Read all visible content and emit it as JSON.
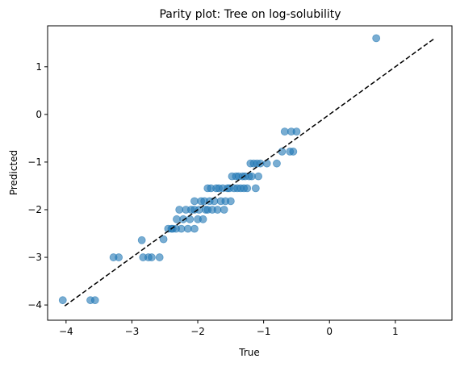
{
  "chart_data": {
    "type": "scatter",
    "title": "Parity plot: Tree on log-solubility",
    "xlabel": "True",
    "ylabel": "Predicted",
    "xlim": [
      -4.28,
      1.86
    ],
    "ylim": [
      -4.32,
      1.86
    ],
    "xticks": [
      -4,
      -3,
      -2,
      -1,
      0,
      1
    ],
    "yticks": [
      -4,
      -3,
      -2,
      -1,
      0,
      1
    ],
    "xtick_labels": [
      "−4",
      "−3",
      "−2",
      "−1",
      "0",
      "1"
    ],
    "ytick_labels": [
      "−4",
      "−3",
      "−2",
      "−1",
      "0",
      "1"
    ],
    "grid": false,
    "point_color": "#1f77b4",
    "point_alpha": 0.6,
    "reference_line": {
      "style": "dashed",
      "color": "#000000",
      "x": [
        -4.02,
        1.58
      ],
      "y": [
        -4.02,
        1.58
      ]
    },
    "points": [
      {
        "x": -4.05,
        "y": -3.9
      },
      {
        "x": -3.63,
        "y": -3.9
      },
      {
        "x": -3.56,
        "y": -3.9
      },
      {
        "x": -3.28,
        "y": -3.0
      },
      {
        "x": -3.2,
        "y": -3.0
      },
      {
        "x": -2.85,
        "y": -2.64
      },
      {
        "x": -2.83,
        "y": -3.0
      },
      {
        "x": -2.75,
        "y": -3.0
      },
      {
        "x": -2.7,
        "y": -3.0
      },
      {
        "x": -2.58,
        "y": -3.0
      },
      {
        "x": -2.52,
        "y": -2.62
      },
      {
        "x": -2.45,
        "y": -2.4
      },
      {
        "x": -2.4,
        "y": -2.4
      },
      {
        "x": -2.38,
        "y": -2.4
      },
      {
        "x": -2.33,
        "y": -2.4
      },
      {
        "x": -2.32,
        "y": -2.2
      },
      {
        "x": -2.28,
        "y": -2.0
      },
      {
        "x": -2.25,
        "y": -2.4
      },
      {
        "x": -2.22,
        "y": -2.2
      },
      {
        "x": -2.18,
        "y": -2.0
      },
      {
        "x": -2.15,
        "y": -2.4
      },
      {
        "x": -2.12,
        "y": -2.2
      },
      {
        "x": -2.1,
        "y": -2.0
      },
      {
        "x": -2.05,
        "y": -2.0
      },
      {
        "x": -2.05,
        "y": -2.4
      },
      {
        "x": -2.05,
        "y": -1.82
      },
      {
        "x": -2.0,
        "y": -2.2
      },
      {
        "x": -1.98,
        "y": -2.0
      },
      {
        "x": -1.95,
        "y": -1.82
      },
      {
        "x": -1.92,
        "y": -2.2
      },
      {
        "x": -1.9,
        "y": -1.82
      },
      {
        "x": -1.88,
        "y": -2.0
      },
      {
        "x": -1.85,
        "y": -1.55
      },
      {
        "x": -1.85,
        "y": -2.0
      },
      {
        "x": -1.82,
        "y": -1.82
      },
      {
        "x": -1.8,
        "y": -1.55
      },
      {
        "x": -1.78,
        "y": -2.0
      },
      {
        "x": -1.75,
        "y": -1.82
      },
      {
        "x": -1.72,
        "y": -1.55
      },
      {
        "x": -1.7,
        "y": -2.0
      },
      {
        "x": -1.68,
        "y": -1.55
      },
      {
        "x": -1.65,
        "y": -1.82
      },
      {
        "x": -1.62,
        "y": -1.55
      },
      {
        "x": -1.6,
        "y": -2.0
      },
      {
        "x": -1.58,
        "y": -1.82
      },
      {
        "x": -1.55,
        "y": -1.55
      },
      {
        "x": -1.52,
        "y": -1.55
      },
      {
        "x": -1.5,
        "y": -1.82
      },
      {
        "x": -1.48,
        "y": -1.3
      },
      {
        "x": -1.45,
        "y": -1.55
      },
      {
        "x": -1.42,
        "y": -1.3
      },
      {
        "x": -1.4,
        "y": -1.55
      },
      {
        "x": -1.38,
        "y": -1.3
      },
      {
        "x": -1.35,
        "y": -1.55
      },
      {
        "x": -1.32,
        "y": -1.3
      },
      {
        "x": -1.3,
        "y": -1.55
      },
      {
        "x": -1.28,
        "y": -1.3
      },
      {
        "x": -1.25,
        "y": -1.55
      },
      {
        "x": -1.22,
        "y": -1.3
      },
      {
        "x": -1.2,
        "y": -1.03
      },
      {
        "x": -1.18,
        "y": -1.3
      },
      {
        "x": -1.15,
        "y": -1.03
      },
      {
        "x": -1.12,
        "y": -1.55
      },
      {
        "x": -1.1,
        "y": -1.03
      },
      {
        "x": -1.08,
        "y": -1.3
      },
      {
        "x": -1.05,
        "y": -1.03
      },
      {
        "x": -0.95,
        "y": -1.03
      },
      {
        "x": -0.8,
        "y": -1.03
      },
      {
        "x": -0.72,
        "y": -0.78
      },
      {
        "x": -0.68,
        "y": -0.36
      },
      {
        "x": -0.6,
        "y": -0.78
      },
      {
        "x": -0.58,
        "y": -0.36
      },
      {
        "x": -0.55,
        "y": -0.78
      },
      {
        "x": -0.5,
        "y": -0.36
      },
      {
        "x": 0.71,
        "y": 1.6
      }
    ]
  }
}
